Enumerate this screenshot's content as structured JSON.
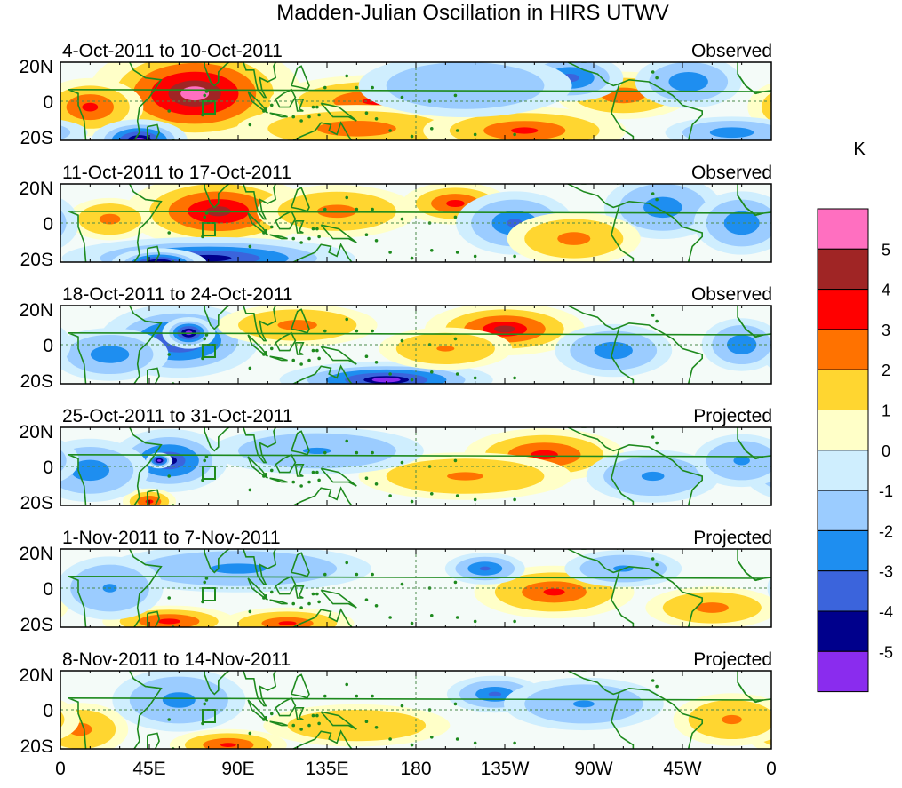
{
  "title": "Madden-Julian Oscillation in HIRS UTWV",
  "colorbar": {
    "unit": "K",
    "labels": [
      "5",
      "4",
      "3",
      "2",
      "1",
      "0",
      "-1",
      "-2",
      "-3",
      "-4",
      "-5"
    ],
    "colors": [
      "#ff6fc0",
      "#a02525",
      "#ff0000",
      "#ff7200",
      "#ffd630",
      "#ffffc8",
      "#cfeefe",
      "#9bccff",
      "#1e8ef0",
      "#3b64dc",
      "#00008c",
      "#8a2cee"
    ]
  },
  "map": {
    "x_ticks": [
      "0",
      "45E",
      "90E",
      "135E",
      "180",
      "135W",
      "90W",
      "45W",
      "0"
    ],
    "y_ticks": [
      "20N",
      "0",
      "20S"
    ],
    "coast_color": "#1e8a1e",
    "marker_name": "box"
  },
  "panels": [
    {
      "dates": "4-Oct-2011 to 10-Oct-2011",
      "status": "Observed",
      "blobs": [
        {
          "lon": 68,
          "lat": 4,
          "rlon": 40,
          "rlat": 20,
          "v": 4.5
        },
        {
          "lon": 15,
          "lat": -3,
          "rlon": 20,
          "rlat": 11,
          "v": 2.5
        },
        {
          "lon": 40,
          "lat": -20,
          "rlon": 18,
          "rlat": 8,
          "v": -4.5
        },
        {
          "lon": 160,
          "lat": 0,
          "rlon": 40,
          "rlat": 10,
          "v": 2.2
        },
        {
          "lon": 150,
          "lat": -14,
          "rlon": 45,
          "rlat": 9,
          "v": 1.8
        },
        {
          "lon": 235,
          "lat": -15,
          "rlon": 38,
          "rlat": 9,
          "v": 2.2
        },
        {
          "lon": 285,
          "lat": 3,
          "rlon": 25,
          "rlat": 9,
          "v": 1.8
        },
        {
          "lon": 258,
          "lat": 12,
          "rlon": 20,
          "rlat": 9,
          "v": -2.6
        },
        {
          "lon": 318,
          "lat": 10,
          "rlon": 20,
          "rlat": 10,
          "v": -2.0
        },
        {
          "lon": 340,
          "lat": -16,
          "rlon": 25,
          "rlat": 6,
          "v": -1.8
        },
        {
          "lon": 205,
          "lat": 8,
          "rlon": 40,
          "rlat": 12,
          "v": -0.5
        }
      ]
    },
    {
      "dates": "11-Oct-2011 to 17-Oct-2011",
      "status": "Observed",
      "blobs": [
        {
          "lon": 80,
          "lat": 6,
          "rlon": 35,
          "rlat": 14,
          "v": 3.6
        },
        {
          "lon": 75,
          "lat": -18,
          "rlon": 55,
          "rlat": 8,
          "v": -3.8
        },
        {
          "lon": 50,
          "lat": -21,
          "rlon": 18,
          "rlat": 6,
          "v": -5.2
        },
        {
          "lon": 200,
          "lat": 10,
          "rlon": 20,
          "rlat": 8,
          "v": 2.6
        },
        {
          "lon": 140,
          "lat": 6,
          "rlon": 30,
          "rlat": 10,
          "v": 1.5
        },
        {
          "lon": 25,
          "lat": 2,
          "rlon": 16,
          "rlat": 8,
          "v": 1.5
        },
        {
          "lon": 230,
          "lat": 0,
          "rlon": 22,
          "rlat": 12,
          "v": -2.1
        },
        {
          "lon": 305,
          "lat": 8,
          "rlon": 22,
          "rlat": 12,
          "v": -1.8
        },
        {
          "lon": 345,
          "lat": 0,
          "rlon": 18,
          "rlat": 12,
          "v": -2.0
        },
        {
          "lon": 260,
          "lat": -8,
          "rlon": 25,
          "rlat": 10,
          "v": 1.5
        }
      ]
    },
    {
      "dates": "18-Oct-2011 to 24-Oct-2011",
      "status": "Observed",
      "blobs": [
        {
          "lon": 60,
          "lat": 2,
          "rlon": 30,
          "rlat": 14,
          "v": -3.5
        },
        {
          "lon": 65,
          "lat": 6,
          "rlon": 10,
          "rlat": 6,
          "v": -4.8
        },
        {
          "lon": 165,
          "lat": -18,
          "rlon": 40,
          "rlat": 7,
          "v": -4.2
        },
        {
          "lon": 25,
          "lat": -5,
          "rlon": 22,
          "rlat": 10,
          "v": -1.8
        },
        {
          "lon": 225,
          "lat": 8,
          "rlon": 30,
          "rlat": 10,
          "v": 3.2
        },
        {
          "lon": 120,
          "lat": 10,
          "rlon": 30,
          "rlat": 8,
          "v": 1.5
        },
        {
          "lon": 280,
          "lat": -3,
          "rlon": 22,
          "rlat": 10,
          "v": -1.8
        },
        {
          "lon": 345,
          "lat": 0,
          "rlon": 15,
          "rlat": 10,
          "v": -2.0
        },
        {
          "lon": 195,
          "lat": -2,
          "rlon": 25,
          "rlat": 8,
          "v": 1.2
        }
      ]
    },
    {
      "dates": "25-Oct-2011 to 31-Oct-2011",
      "status": "Projected",
      "blobs": [
        {
          "lon": 55,
          "lat": 3,
          "rlon": 22,
          "rlat": 12,
          "v": -3.2
        },
        {
          "lon": 50,
          "lat": 3,
          "rlon": 5,
          "rlat": 3,
          "v": -5.0
        },
        {
          "lon": 45,
          "lat": -18,
          "rlon": 10,
          "rlat": 5,
          "v": 2.5
        },
        {
          "lon": 245,
          "lat": 6,
          "rlon": 30,
          "rlat": 10,
          "v": 2.6
        },
        {
          "lon": 205,
          "lat": -5,
          "rlon": 40,
          "rlat": 9,
          "v": 1.3
        },
        {
          "lon": 15,
          "lat": -2,
          "rlon": 22,
          "rlat": 12,
          "v": -1.8
        },
        {
          "lon": 130,
          "lat": 8,
          "rlon": 40,
          "rlat": 9,
          "v": -1.2
        },
        {
          "lon": 300,
          "lat": -5,
          "rlon": 25,
          "rlat": 10,
          "v": -1.3
        },
        {
          "lon": 345,
          "lat": 3,
          "rlon": 18,
          "rlat": 10,
          "v": -1.3
        }
      ]
    },
    {
      "dates": "1-Nov-2011 to 7-Nov-2011",
      "status": "Projected",
      "blobs": [
        {
          "lon": 55,
          "lat": -17,
          "rlon": 25,
          "rlat": 6,
          "v": 2.6
        },
        {
          "lon": 115,
          "lat": -18,
          "rlon": 25,
          "rlat": 6,
          "v": 2.1
        },
        {
          "lon": 250,
          "lat": -2,
          "rlon": 30,
          "rlat": 10,
          "v": 2.2
        },
        {
          "lon": 215,
          "lat": 10,
          "rlon": 15,
          "rlat": 6,
          "v": -2.4
        },
        {
          "lon": 330,
          "lat": -10,
          "rlon": 25,
          "rlat": 8,
          "v": 1.5
        },
        {
          "lon": 90,
          "lat": 10,
          "rlon": 50,
          "rlat": 9,
          "v": -1.4
        },
        {
          "lon": 25,
          "lat": 0,
          "rlon": 20,
          "rlat": 12,
          "v": -1.2
        },
        {
          "lon": 285,
          "lat": 10,
          "rlon": 22,
          "rlat": 7,
          "v": -1.3
        }
      ]
    },
    {
      "dates": "8-Nov-2011 to 14-Nov-2011",
      "status": "Projected",
      "blobs": [
        {
          "lon": 85,
          "lat": -18,
          "rlon": 22,
          "rlat": 6,
          "v": 2.4
        },
        {
          "lon": 10,
          "lat": -10,
          "rlon": 18,
          "rlat": 10,
          "v": 1.5
        },
        {
          "lon": 220,
          "lat": 8,
          "rlon": 18,
          "rlat": 7,
          "v": -2.2
        },
        {
          "lon": 60,
          "lat": 5,
          "rlon": 25,
          "rlat": 12,
          "v": -1.5
        },
        {
          "lon": 340,
          "lat": -5,
          "rlon": 22,
          "rlat": 10,
          "v": 1.3
        },
        {
          "lon": 150,
          "lat": -8,
          "rlon": 35,
          "rlat": 8,
          "v": 0.8
        },
        {
          "lon": 265,
          "lat": 3,
          "rlon": 30,
          "rlat": 10,
          "v": -1.2
        }
      ]
    }
  ]
}
